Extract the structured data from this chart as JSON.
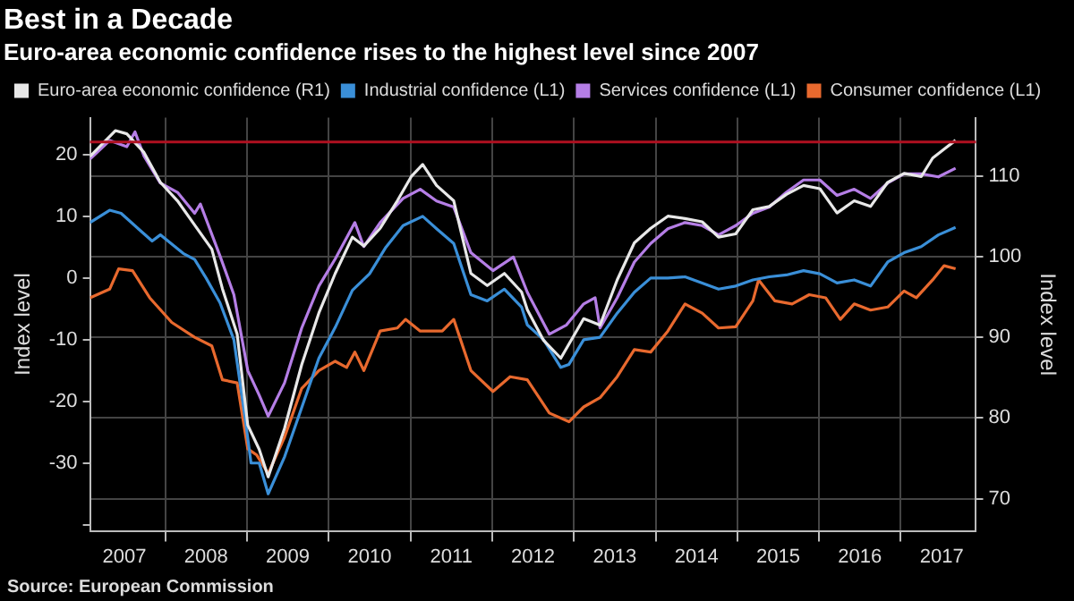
{
  "chart_data": {
    "type": "line",
    "title": "Best in a Decade",
    "subtitle": "Euro-area economic confidence rises to the highest level since 2007",
    "ylabel": "Index level",
    "y2label": "Index level",
    "legend": "top",
    "grid": true,
    "marker": "none",
    "line_style": "solid",
    "xlim": [
      2007.08,
      2017.92
    ],
    "xticks": [
      {
        "value": 2007.5,
        "label": "2007"
      },
      {
        "value": 2008,
        "label": null
      },
      {
        "value": 2008.5,
        "label": "2008"
      },
      {
        "value": 2009,
        "label": null
      },
      {
        "value": 2009.5,
        "label": "2009"
      },
      {
        "value": 2010,
        "label": null
      },
      {
        "value": 2010.5,
        "label": "2010"
      },
      {
        "value": 2011,
        "label": null
      },
      {
        "value": 2011.5,
        "label": "2011"
      },
      {
        "value": 2012,
        "label": null
      },
      {
        "value": 2012.5,
        "label": "2012"
      },
      {
        "value": 2013,
        "label": null
      },
      {
        "value": 2013.5,
        "label": "2013"
      },
      {
        "value": 2014,
        "label": null
      },
      {
        "value": 2014.5,
        "label": "2014"
      },
      {
        "value": 2015,
        "label": null
      },
      {
        "value": 2015.5,
        "label": "2015"
      },
      {
        "value": 2016,
        "label": null
      },
      {
        "value": 2016.5,
        "label": "2016"
      },
      {
        "value": 2017,
        "label": null
      },
      {
        "value": 2017.5,
        "label": "2017"
      }
    ],
    "ylim": [
      -41,
      26
    ],
    "yticks": [
      {
        "value": -40,
        "label": null
      },
      -30,
      -20,
      -10,
      0,
      10,
      20
    ],
    "y2lim": [
      66,
      117.2
    ],
    "y2ticks": [
      70,
      80,
      90,
      100,
      110
    ],
    "ref_lines": [
      {
        "axis": "y2",
        "value": 114.2,
        "color": "#b01020"
      }
    ],
    "annotations": [
      "Source: European Commission"
    ],
    "series": [
      {
        "name": "Euro-area economic confidence (R1)",
        "color": "#e8e8e8",
        "axis": "y2",
        "x": [
          2007.08,
          2007.39,
          2007.53,
          2007.74,
          2007.94,
          2008.15,
          2008.36,
          2008.57,
          2008.7,
          2008.88,
          2009.01,
          2009.15,
          2009.26,
          2009.46,
          2009.67,
          2009.88,
          2010.08,
          2010.29,
          2010.43,
          2010.63,
          2010.84,
          2011.01,
          2011.15,
          2011.32,
          2011.53,
          2011.74,
          2011.94,
          2012.15,
          2012.36,
          2012.43,
          2012.63,
          2012.84,
          2013.12,
          2013.32,
          2013.53,
          2013.74,
          2013.94,
          2014.15,
          2014.36,
          2014.57,
          2014.77,
          2014.98,
          2015.19,
          2015.39,
          2015.6,
          2015.81,
          2016.01,
          2016.22,
          2016.43,
          2016.63,
          2016.84,
          2017.04,
          2017.25,
          2017.39,
          2017.53,
          2017.67
        ],
        "values": [
          112.4,
          115.6,
          115.2,
          112.9,
          109.2,
          106.9,
          103.9,
          100.9,
          96,
          90.4,
          79.1,
          76.1,
          72.7,
          78.7,
          86.6,
          93,
          97.9,
          102.4,
          101.3,
          103.5,
          106.9,
          109.9,
          111.4,
          108.8,
          106.9,
          97.9,
          96.4,
          97.9,
          95.6,
          93.4,
          89.6,
          87.4,
          92.3,
          91.5,
          97.1,
          101.7,
          103.5,
          105,
          104.7,
          104.3,
          102.4,
          102.8,
          105.8,
          106.2,
          107.7,
          108.8,
          108.4,
          105.4,
          106.9,
          106.2,
          109.2,
          110.3,
          109.9,
          112.2,
          113.3,
          114.4
        ]
      },
      {
        "name": "Industrial confidence (L1)",
        "color": "#3a8fd8",
        "x": [
          2007.08,
          2007.32,
          2007.46,
          2007.67,
          2007.84,
          2007.94,
          2008.22,
          2008.36,
          2008.5,
          2008.67,
          2008.84,
          2008.98,
          2009.05,
          2009.15,
          2009.26,
          2009.46,
          2009.67,
          2009.88,
          2010.08,
          2010.29,
          2010.5,
          2010.7,
          2010.91,
          2011.15,
          2011.32,
          2011.53,
          2011.74,
          2011.94,
          2012.15,
          2012.36,
          2012.43,
          2012.63,
          2012.84,
          2012.94,
          2013.12,
          2013.32,
          2013.53,
          2013.74,
          2013.94,
          2014.15,
          2014.36,
          2014.57,
          2014.77,
          2014.98,
          2015.19,
          2015.39,
          2015.6,
          2015.81,
          2016.01,
          2016.22,
          2016.43,
          2016.63,
          2016.84,
          2017.04,
          2017.25,
          2017.46,
          2017.67
        ],
        "values": [
          9,
          11,
          10.5,
          8,
          6,
          7,
          4,
          3,
          0,
          -4,
          -10,
          -23,
          -30,
          -30,
          -35,
          -29,
          -21,
          -13,
          -8,
          -2,
          0.7,
          5,
          8.5,
          10,
          8,
          5.6,
          -2.7,
          -3.7,
          -1.8,
          -4.7,
          -7.6,
          -10,
          -14.5,
          -14,
          -10,
          -9.6,
          -5.7,
          -2.3,
          0,
          0,
          0.2,
          -0.8,
          -1.8,
          -1.3,
          -0.3,
          0.2,
          0.5,
          1.2,
          0.7,
          -0.8,
          -0.3,
          -1.3,
          2.6,
          4.1,
          5.1,
          7,
          8.2
        ]
      },
      {
        "name": "Services confidence (L1)",
        "color": "#b57ee6",
        "x": [
          2007.08,
          2007.32,
          2007.53,
          2007.63,
          2007.74,
          2007.94,
          2008.15,
          2008.36,
          2008.43,
          2008.67,
          2008.84,
          2009.01,
          2009.15,
          2009.26,
          2009.46,
          2009.67,
          2009.88,
          2010.08,
          2010.32,
          2010.43,
          2010.63,
          2010.91,
          2011.12,
          2011.32,
          2011.53,
          2011.74,
          2012.01,
          2012.26,
          2012.43,
          2012.7,
          2012.91,
          2013.12,
          2013.26,
          2013.32,
          2013.53,
          2013.74,
          2013.94,
          2014.15,
          2014.36,
          2014.57,
          2014.77,
          2014.98,
          2015.19,
          2015.39,
          2015.6,
          2015.81,
          2016.01,
          2016.22,
          2016.43,
          2016.63,
          2016.84,
          2017.04,
          2017.25,
          2017.46,
          2017.67
        ],
        "values": [
          19.3,
          22.3,
          21.3,
          23.7,
          19.8,
          15.4,
          13.9,
          10.5,
          12,
          3.6,
          -2.7,
          -15,
          -19,
          -22.4,
          -17,
          -8.1,
          -1.3,
          3.1,
          9,
          5.1,
          9,
          12.9,
          14.4,
          12.5,
          11.5,
          4.1,
          1.2,
          3.4,
          -2.3,
          -9.1,
          -7.6,
          -4.2,
          -3.2,
          -8.1,
          -3.2,
          2.6,
          5.6,
          8,
          9,
          8.5,
          7,
          8.5,
          10.5,
          11.5,
          13.9,
          15.9,
          15.9,
          13.4,
          14.4,
          12.9,
          15.4,
          16.9,
          16.9,
          16.4,
          17.8
        ]
      },
      {
        "name": "Consumer confidence (L1)",
        "color": "#e8692e",
        "x": [
          2007.08,
          2007.32,
          2007.43,
          2007.6,
          2007.81,
          2008.08,
          2008.36,
          2008.57,
          2008.7,
          2008.88,
          2009.01,
          2009.12,
          2009.26,
          2009.46,
          2009.67,
          2009.88,
          2010.08,
          2010.22,
          2010.32,
          2010.43,
          2010.63,
          2010.84,
          2010.94,
          2011.12,
          2011.39,
          2011.53,
          2011.74,
          2012.01,
          2012.22,
          2012.43,
          2012.7,
          2012.94,
          2013.12,
          2013.32,
          2013.53,
          2013.74,
          2013.94,
          2014.15,
          2014.36,
          2014.57,
          2014.77,
          2014.98,
          2015.19,
          2015.26,
          2015.46,
          2015.67,
          2015.88,
          2016.08,
          2016.26,
          2016.43,
          2016.63,
          2016.84,
          2017.04,
          2017.19,
          2017.39,
          2017.53,
          2017.67
        ],
        "values": [
          -3.2,
          -1.8,
          1.5,
          1.2,
          -3.2,
          -7.2,
          -9.6,
          -11,
          -16.5,
          -17,
          -27.7,
          -28.7,
          -31.7,
          -25.8,
          -17.9,
          -15,
          -13.5,
          -14.5,
          -12,
          -15,
          -8.6,
          -8.1,
          -6.7,
          -8.6,
          -8.6,
          -6.7,
          -15,
          -18.4,
          -16,
          -16.5,
          -21.9,
          -23.3,
          -20.9,
          -19.4,
          -16,
          -11.6,
          -12,
          -8.6,
          -4.2,
          -5.7,
          -8.1,
          -7.9,
          -3.7,
          -0.3,
          -3.7,
          -4.2,
          -2.7,
          -3.2,
          -6.7,
          -4.2,
          -5.2,
          -4.7,
          -2.1,
          -3.2,
          -0.3,
          2,
          1.5
        ]
      }
    ]
  }
}
